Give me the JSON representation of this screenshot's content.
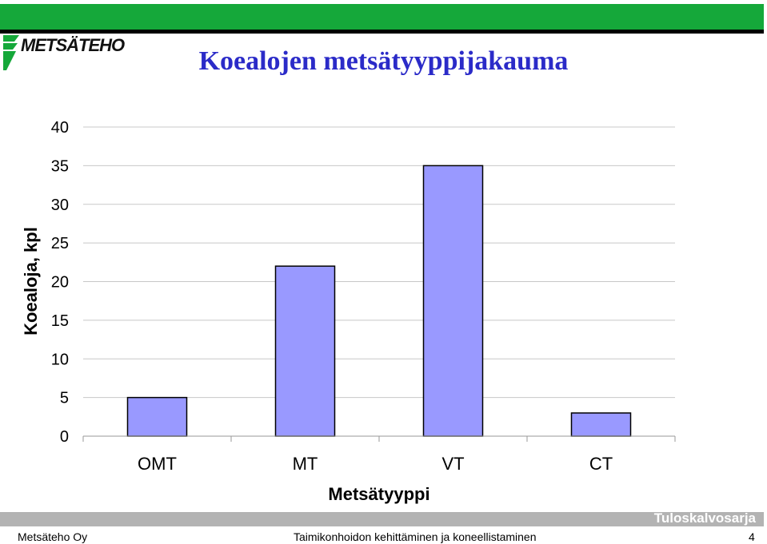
{
  "header": {
    "logo_text": "METSÄTEHO",
    "title": "Koealojen metsätyyppijakauma"
  },
  "colors": {
    "header_band": "#15a83a",
    "title": "#2b2bc8",
    "bar_fill": "#9999ff",
    "footer_band": "#b3b3b3"
  },
  "chart_data": {
    "type": "bar",
    "categories": [
      "OMT",
      "MT",
      "VT",
      "CT"
    ],
    "values": [
      5,
      22,
      35,
      3
    ],
    "xlabel": "Metsätyyppi",
    "ylabel": "Koealoja, kpl",
    "ylim": [
      0,
      40
    ],
    "yticks": [
      0,
      5,
      10,
      15,
      20,
      25,
      30,
      35,
      40
    ],
    "grid": true,
    "legend": "none"
  },
  "footer": {
    "series_label": "Tuloskalvosarja",
    "organization": "Metsäteho Oy",
    "subject": "Taimikonhoidon kehittäminen ja koneellistaminen",
    "page_number": "4"
  }
}
